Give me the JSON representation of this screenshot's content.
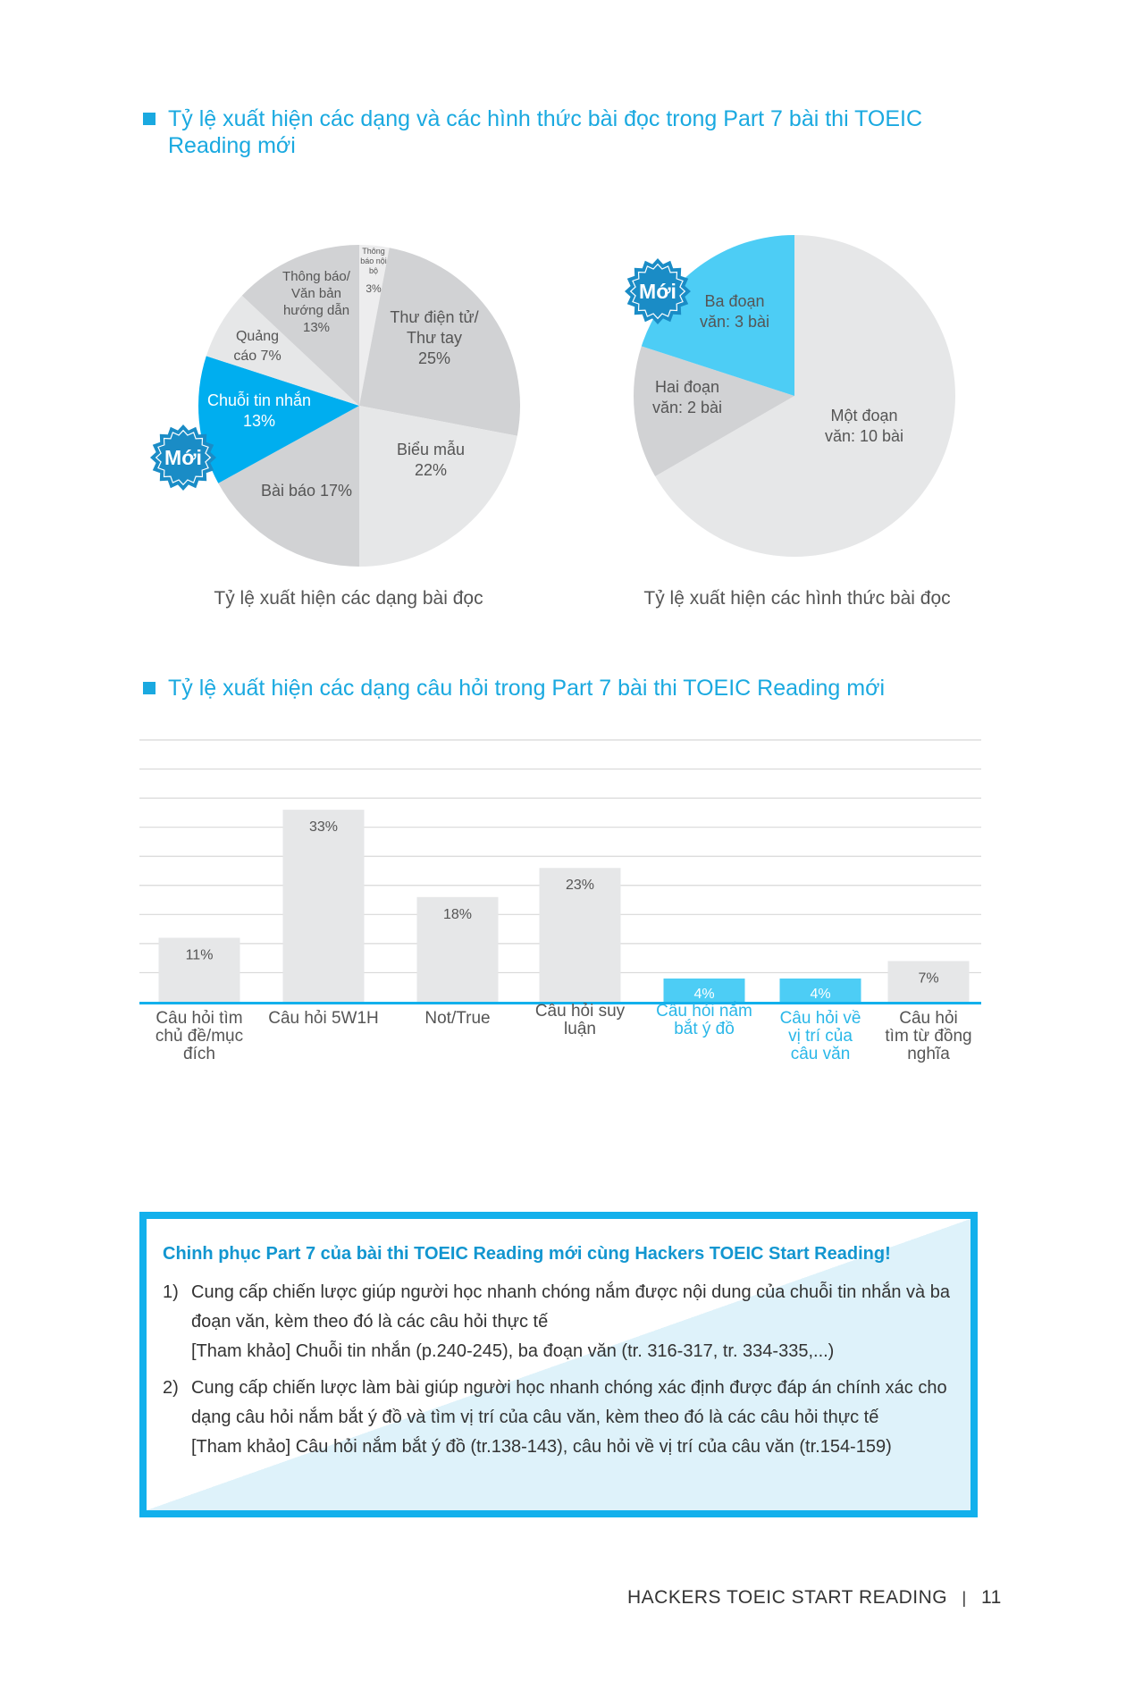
{
  "section1": {
    "title": "Tỷ lệ xuất hiện các dạng và các hình thức bài đọc trong Part 7 bài thi TOEIC Reading mới"
  },
  "section2": {
    "title": "Tỷ lệ xuất hiện các dạng câu hỏi trong Part 7 bài thi TOEIC Reading mới"
  },
  "badge_label": "Mới",
  "chart_data": [
    {
      "type": "pie",
      "title": "Tỷ lệ xuất hiện các dạng bài đọc",
      "slices": [
        {
          "label": "Thông báo nội bộ",
          "value": 3,
          "display": "Thông\nbáo nội\nbộ",
          "pct": "3%",
          "color": "#ededee"
        },
        {
          "label": "Thư điện tử/ Thư tay",
          "value": 25,
          "display": "Thư điện tử/\nThư tay\n25%",
          "color": "#d1d2d4"
        },
        {
          "label": "Biểu mẫu",
          "value": 22,
          "display": "Biểu mẫu\n22%",
          "color": "#e6e7e8"
        },
        {
          "label": "Bài báo",
          "value": 17,
          "display": "Bài báo 17%",
          "color": "#d1d2d4"
        },
        {
          "label": "Chuỗi tin nhắn",
          "value": 13,
          "display": "Chuỗi tin nhắn\n13%",
          "color": "#00aeef",
          "new": true
        },
        {
          "label": "Quảng cáo",
          "value": 7,
          "display": "Quảng\ncáo 7%",
          "color": "#e6e7e8"
        },
        {
          "label": "Thông báo/ Văn bản hướng dẫn",
          "value": 13,
          "display": "Thông báo/\nVăn bản\nhướng dẫn\n13%",
          "color": "#d1d2d4"
        }
      ]
    },
    {
      "type": "pie",
      "title": "Tỷ lệ xuất hiện các hình thức bài đọc",
      "slices": [
        {
          "label": "Một đoạn văn",
          "value": 10,
          "display": "Một đoạn\nvăn: 10 bài",
          "color": "#e6e7e8"
        },
        {
          "label": "Hai đoạn văn",
          "value": 2,
          "display": "Hai đoạn\nvăn: 2 bài",
          "color": "#d1d2d4"
        },
        {
          "label": "Ba đoạn văn",
          "value": 3,
          "display": "Ba đoạn\nvăn: 3 bài",
          "color": "#4dcdf5",
          "new": true
        }
      ]
    },
    {
      "type": "bar",
      "categories": [
        "Câu hỏi tìm chủ đề/mục đích",
        "Câu hỏi 5W1H",
        "Not/True",
        "Câu hỏi suy luận",
        "Câu hỏi nắm bắt ý đồ",
        "Câu hỏi về vị trí của câu văn",
        "Câu hỏi tìm từ đồng nghĩa"
      ],
      "category_display": [
        "Câu hỏi tìm\nchủ đề/mục\nđích",
        "Câu hỏi 5W1H",
        "Not/True",
        "Câu hỏi suy\nluận",
        "Câu hỏi nắm\nbắt ý đồ",
        "Câu hỏi về\nvị trí của\ncâu văn",
        "Câu hỏi\ntìm từ đồng\nnghĩa"
      ],
      "values": [
        11,
        33,
        18,
        23,
        4,
        4,
        7
      ],
      "data_labels": [
        "11%",
        "33%",
        "18%",
        "23%",
        "4%",
        "4%",
        "7%"
      ],
      "highlight": [
        false,
        false,
        false,
        false,
        true,
        true,
        false
      ],
      "ylim": [
        0,
        45
      ],
      "grid": true,
      "colors": {
        "bar": "#e6e7e8",
        "highlight": "#4dcdf5",
        "axis": "#12b0ec",
        "grid": "#d8d8d8"
      }
    }
  ],
  "infobox": {
    "heading": "Chinh phục Part 7 của bài thi TOEIC Reading mới cùng Hackers TOEIC Start Reading!",
    "items": [
      {
        "num": "1)",
        "text": "Cung cấp chiến lược giúp người học nhanh chóng nắm được nội dung của chuỗi tin nhắn và ba đoạn văn, kèm theo đó là các câu hỏi thực tế",
        "ref": "[Tham khảo] Chuỗi tin nhắn (p.240-245), ba đoạn văn (tr. 316-317, tr. 334-335,...)"
      },
      {
        "num": "2)",
        "text": "Cung cấp chiến lược làm bài giúp người học nhanh chóng xác định được đáp án chính xác cho dạng câu hỏi nắm bắt ý đồ và tìm vị trí của câu văn, kèm theo đó là các câu hỏi thực tế",
        "ref": "[Tham khảo] Câu hỏi nắm bắt ý đồ (tr.138-143), câu hỏi về vị trí của câu văn (tr.154-159)"
      }
    ]
  },
  "footer": {
    "book": "HACKERS TOEIC START READING",
    "separator": "|",
    "page": "11"
  }
}
